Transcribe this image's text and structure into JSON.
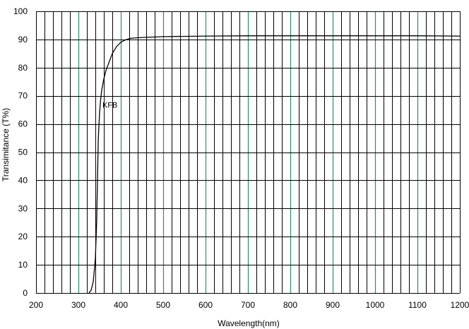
{
  "chart_data": {
    "type": "line",
    "title": "",
    "xlabel": "Wavelength(nm)",
    "ylabel": "Transimitance (T%)",
    "xlim": [
      200,
      1200
    ],
    "ylim": [
      0,
      100
    ],
    "x_ticks": [
      200,
      300,
      400,
      500,
      600,
      700,
      800,
      900,
      1000,
      1100,
      1200
    ],
    "y_ticks": [
      0,
      10,
      20,
      30,
      40,
      50,
      60,
      70,
      80,
      90,
      100
    ],
    "x_minor_step": 20,
    "grid": true,
    "legend": "none",
    "colors": {
      "major_grid": "#2e8b6f",
      "minor_grid": "#000000",
      "curve": "#000000"
    },
    "annotations": [
      {
        "text": "KFB",
        "x": 365,
        "y": 65
      }
    ],
    "series": [
      {
        "name": "KFB",
        "x": [
          325,
          330,
          335,
          340,
          343,
          345,
          347,
          350,
          352,
          355,
          360,
          365,
          370,
          375,
          380,
          390,
          400,
          410,
          420,
          430,
          440,
          450,
          500,
          600,
          700,
          800,
          900,
          1000,
          1100,
          1200
        ],
        "y": [
          0,
          1,
          4,
          12,
          25,
          40,
          55,
          64,
          68,
          72,
          76,
          79,
          81,
          83,
          85,
          87.5,
          89,
          89.8,
          90.3,
          90.5,
          90.6,
          90.7,
          91,
          91.2,
          91.3,
          91.3,
          91.3,
          91.3,
          91.3,
          91.2
        ]
      }
    ]
  }
}
